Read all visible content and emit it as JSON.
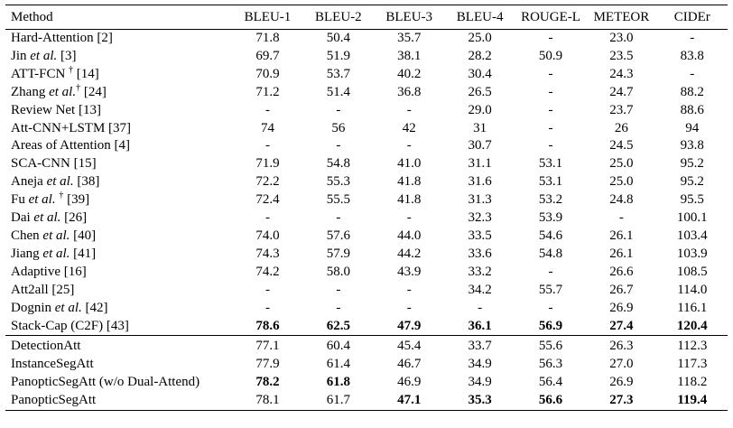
{
  "table": {
    "headers": [
      "Method",
      "BLEU-1",
      "BLEU-2",
      "BLEU-3",
      "BLEU-4",
      "ROUGE-L",
      "METEOR",
      "CIDEr"
    ],
    "group1": [
      {
        "pre": "Hard-Attention [2]",
        "ital": "",
        "post": "",
        "dag": "",
        "tail": "",
        "vals": [
          "71.8",
          "50.4",
          "35.7",
          "25.0",
          "-",
          "23.0",
          "-"
        ],
        "bold": []
      },
      {
        "pre": "Jin ",
        "ital": "et al.",
        "post": " [3]",
        "dag": "",
        "tail": "",
        "vals": [
          "69.7",
          "51.9",
          "38.1",
          "28.2",
          "50.9",
          "23.5",
          "83.8"
        ],
        "bold": []
      },
      {
        "pre": "ATT-FCN ",
        "ital": "",
        "post": "",
        "dag": "†",
        "tail": " [14]",
        "vals": [
          "70.9",
          "53.7",
          "40.2",
          "30.4",
          "-",
          "24.3",
          "-"
        ],
        "bold": []
      },
      {
        "pre": "Zhang ",
        "ital": "et al.",
        "post": "",
        "dag": "†",
        "tail": " [24]",
        "vals": [
          "71.2",
          "51.4",
          "36.8",
          "26.5",
          "-",
          "24.7",
          "88.2"
        ],
        "bold": []
      },
      {
        "pre": "Review Net [13]",
        "ital": "",
        "post": "",
        "dag": "",
        "tail": "",
        "vals": [
          "-",
          "-",
          "-",
          "29.0",
          "-",
          "23.7",
          "88.6"
        ],
        "bold": []
      },
      {
        "pre": "Att-CNN+LSTM [37]",
        "ital": "",
        "post": "",
        "dag": "",
        "tail": "",
        "vals": [
          "74",
          "56",
          "42",
          "31",
          "-",
          "26",
          "94"
        ],
        "bold": []
      },
      {
        "pre": "Areas of Attention [4]",
        "ital": "",
        "post": "",
        "dag": "",
        "tail": "",
        "vals": [
          "-",
          "-",
          "-",
          "30.7",
          "-",
          "24.5",
          "93.8"
        ],
        "bold": []
      },
      {
        "pre": "SCA-CNN [15]",
        "ital": "",
        "post": "",
        "dag": "",
        "tail": "",
        "vals": [
          "71.9",
          "54.8",
          "41.0",
          "31.1",
          "53.1",
          "25.0",
          "95.2"
        ],
        "bold": []
      },
      {
        "pre": "Aneja ",
        "ital": "et al.",
        "post": " [38]",
        "dag": "",
        "tail": "",
        "vals": [
          "72.2",
          "55.3",
          "41.8",
          "31.6",
          "53.1",
          "25.0",
          "95.2"
        ],
        "bold": []
      },
      {
        "pre": "Fu ",
        "ital": "et al.",
        "post": " ",
        "dag": "†",
        "tail": " [39]",
        "vals": [
          "72.4",
          "55.5",
          "41.8",
          "31.3",
          "53.2",
          "24.8",
          "95.5"
        ],
        "bold": []
      },
      {
        "pre": "Dai ",
        "ital": "et al.",
        "post": " [26]",
        "dag": "",
        "tail": "",
        "vals": [
          "-",
          "-",
          "-",
          "32.3",
          "53.9",
          "-",
          "100.1"
        ],
        "bold": []
      },
      {
        "pre": "Chen ",
        "ital": "et al.",
        "post": " [40]",
        "dag": "",
        "tail": "",
        "vals": [
          "74.0",
          "57.6",
          "44.0",
          "33.5",
          "54.6",
          "26.1",
          "103.4"
        ],
        "bold": []
      },
      {
        "pre": "Jiang ",
        "ital": "et al.",
        "post": " [41]",
        "dag": "",
        "tail": "",
        "vals": [
          "74.3",
          "57.9",
          "44.2",
          "33.6",
          "54.8",
          "26.1",
          "103.9"
        ],
        "bold": []
      },
      {
        "pre": "Adaptive [16]",
        "ital": "",
        "post": "",
        "dag": "",
        "tail": "",
        "vals": [
          "74.2",
          "58.0",
          "43.9",
          "33.2",
          "-",
          "26.6",
          "108.5"
        ],
        "bold": []
      },
      {
        "pre": "Att2all [25]",
        "ital": "",
        "post": "",
        "dag": "",
        "tail": "",
        "vals": [
          "-",
          "-",
          "-",
          "34.2",
          "55.7",
          "26.7",
          "114.0"
        ],
        "bold": []
      },
      {
        "pre": "Dognin ",
        "ital": "et al.",
        "post": " [42]",
        "dag": "",
        "tail": "",
        "vals": [
          "-",
          "-",
          "-",
          "-",
          "-",
          "26.9",
          "116.1"
        ],
        "bold": []
      },
      {
        "pre": "Stack-Cap (C2F) [43]",
        "ital": "",
        "post": "",
        "dag": "",
        "tail": "",
        "vals": [
          "78.6",
          "62.5",
          "47.9",
          "36.1",
          "56.9",
          "27.4",
          "120.4"
        ],
        "bold": [
          0,
          1,
          2,
          3,
          4,
          5,
          6
        ]
      }
    ],
    "group2": [
      {
        "pre": "DetectionAtt",
        "ital": "",
        "post": "",
        "dag": "",
        "tail": "",
        "vals": [
          "77.1",
          "60.4",
          "45.4",
          "33.7",
          "55.6",
          "26.3",
          "112.3"
        ],
        "bold": []
      },
      {
        "pre": "InstanceSegAtt",
        "ital": "",
        "post": "",
        "dag": "",
        "tail": "",
        "vals": [
          "77.9",
          "61.4",
          "46.7",
          "34.9",
          "56.3",
          "27.0",
          "117.3"
        ],
        "bold": []
      },
      {
        "pre": "PanopticSegAtt (w/o Dual-Attend)",
        "ital": "",
        "post": "",
        "dag": "",
        "tail": "",
        "vals": [
          "78.2",
          "61.8",
          "46.9",
          "34.9",
          "56.4",
          "26.9",
          "118.2"
        ],
        "bold": [
          0,
          1
        ]
      },
      {
        "pre": "PanopticSegAtt",
        "ital": "",
        "post": "",
        "dag": "",
        "tail": "",
        "vals": [
          "78.1",
          "61.7",
          "47.1",
          "35.3",
          "56.6",
          "27.3",
          "119.4"
        ],
        "bold": [
          2,
          3,
          4,
          5,
          6
        ]
      }
    ]
  }
}
